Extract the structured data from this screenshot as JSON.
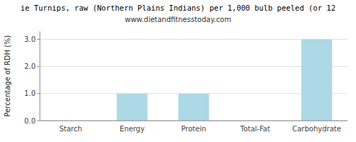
{
  "chart_data": {
    "type": "bar",
    "title": "ie Turnips, raw (Northern Plains Indians) per 1,000 bulb peeled (or 12",
    "subtitle": "www.dietandfitnesstoday.com",
    "ylabel": "Percentage of RDH (%)",
    "categories": [
      "Starch",
      "Energy",
      "Protein",
      "Total-Fat",
      "Carbohydrate"
    ],
    "values": [
      0.0,
      1.0,
      1.0,
      0.0,
      3.0
    ],
    "color": "#add8e6",
    "ylim": [
      0,
      3.3
    ],
    "yticks": [
      {
        "value": 0.0,
        "label": "0.0"
      },
      {
        "value": 1.0,
        "label": "1.0"
      },
      {
        "value": 2.0,
        "label": "2.0"
      },
      {
        "value": 3.0,
        "label": "3.0"
      }
    ],
    "grid": true
  }
}
